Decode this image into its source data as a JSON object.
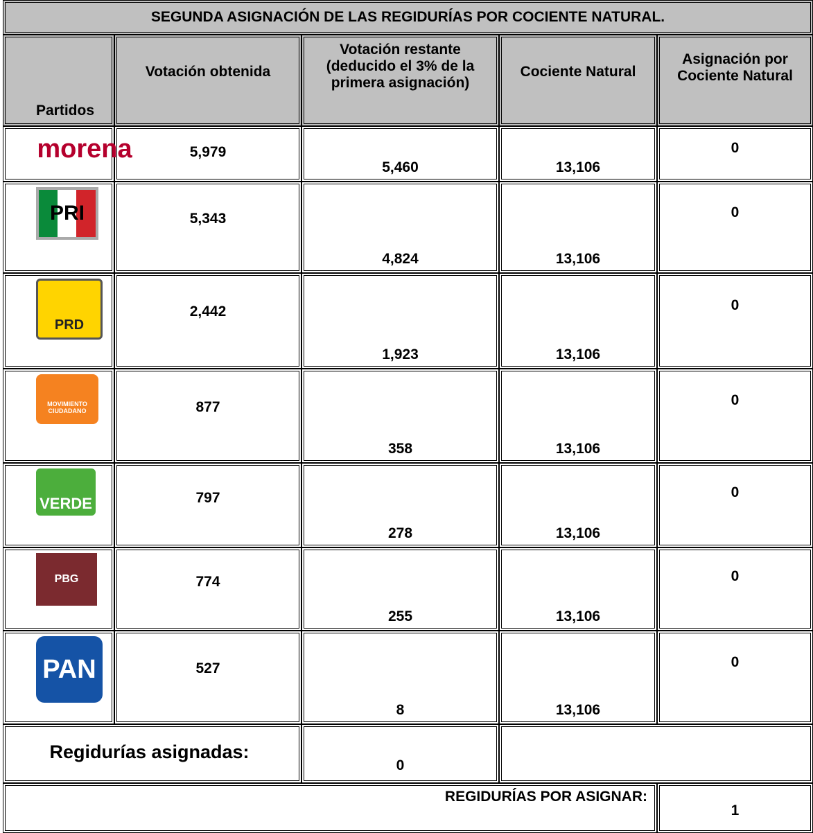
{
  "title": "SEGUNDA ASIGNACIÓN DE LAS REGIDURÍAS POR COCIENTE NATURAL.",
  "headers": [
    "Partidos",
    "Votación obtenida",
    "Votación restante (deducido el 3% de la primera asignación)",
    "Cociente Natural",
    "Asignación por Cociente Natural"
  ],
  "rows": [
    {
      "logo": "morena",
      "votes": "5,979",
      "remaining": "5,460",
      "quotient": "13,106",
      "assigned": "0"
    },
    {
      "logo": "PRI",
      "votes": "5,343",
      "remaining": "4,824",
      "quotient": "13,106",
      "assigned": "0"
    },
    {
      "logo": "PRD",
      "votes": "2,442",
      "remaining": "1,923",
      "quotient": "13,106",
      "assigned": "0"
    },
    {
      "logo": "MOVIMIENTO CIUDADANO",
      "votes": "877",
      "remaining": "358",
      "quotient": "13,106",
      "assigned": "0"
    },
    {
      "logo": "VERDE",
      "votes": "797",
      "remaining": "278",
      "quotient": "13,106",
      "assigned": "0"
    },
    {
      "logo": "PBG",
      "votes": "774",
      "remaining": "255",
      "quotient": "13,106",
      "assigned": "0"
    },
    {
      "logo": "PAN",
      "votes": "527",
      "remaining": "8",
      "quotient": "13,106",
      "assigned": "0"
    }
  ],
  "assigned": {
    "label": "Regidurías asignadas:",
    "value": "0"
  },
  "pending": {
    "label": "REGIDURÍAS POR ASIGNAR:",
    "value": "1"
  }
}
